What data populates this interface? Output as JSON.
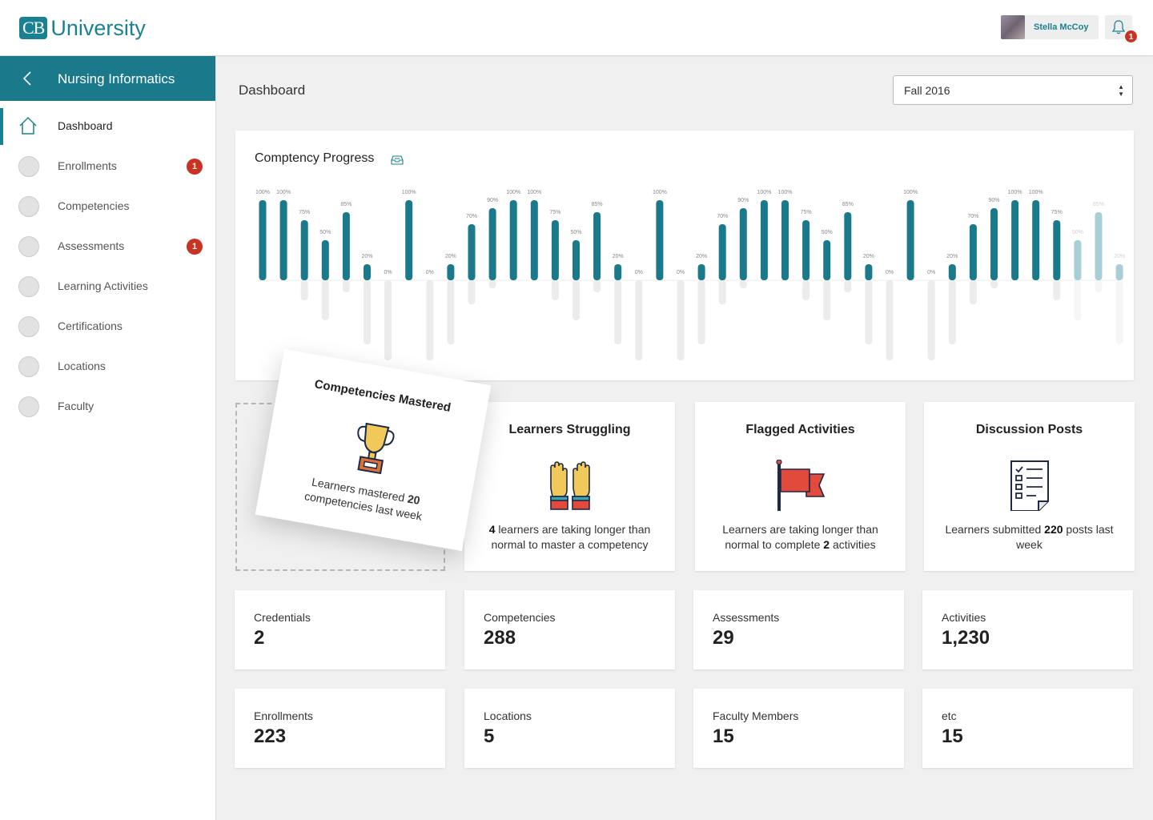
{
  "header": {
    "logo_mark": "CB",
    "logo_text": "University",
    "user_name": "Stella McCoy",
    "notification_count": "1"
  },
  "sidebar": {
    "title": "Nursing Informatics",
    "items": [
      {
        "label": "Dashboard",
        "active": true,
        "badge": ""
      },
      {
        "label": "Enrollments",
        "badge": "1"
      },
      {
        "label": "Competencies",
        "badge": ""
      },
      {
        "label": "Assessments",
        "badge": "1"
      },
      {
        "label": "Learning Activities",
        "badge": ""
      },
      {
        "label": "Certifications",
        "badge": ""
      },
      {
        "label": "Locations",
        "badge": ""
      },
      {
        "label": "Faculty",
        "badge": ""
      }
    ]
  },
  "main": {
    "title": "Dashboard",
    "term_select": "Fall 2016"
  },
  "chart_data": {
    "type": "bar",
    "title": "Comptency Progress",
    "xlabel": "",
    "ylabel": "",
    "ylim": [
      0,
      100
    ],
    "value_suffix": "%",
    "colors": {
      "bar": "#1a7a8c",
      "faded_bar": "#a9cfd6",
      "track": "#ececec"
    },
    "values": [
      100,
      100,
      75,
      50,
      85,
      20,
      0,
      100,
      0,
      20,
      70,
      90,
      100,
      100,
      75,
      50,
      85,
      20,
      0,
      100,
      0,
      20,
      70,
      90,
      100,
      100,
      75,
      50,
      85,
      20,
      0,
      100,
      0,
      20,
      70,
      90,
      100,
      100,
      75,
      50,
      85,
      20
    ],
    "faded_from_index": 39
  },
  "features": {
    "mastered": {
      "title": "Competencies Mastered",
      "desc_pre": "Learners mastered ",
      "desc_num": "20",
      "desc_post": " competencies last week"
    },
    "struggling": {
      "title": "Learners Struggling",
      "desc_num": "4",
      "desc_post": " learners are taking longer than normal to master a competency"
    },
    "flagged": {
      "title": "Flagged Activities",
      "desc_pre": "Learners are taking longer than normal to complete ",
      "desc_num": "2",
      "desc_post": " activities"
    },
    "posts": {
      "title": "Discussion Posts",
      "desc_pre": "Learners submitted ",
      "desc_num": "220",
      "desc_post": " posts last week"
    }
  },
  "stats": [
    {
      "label": "Credentials",
      "value": "2"
    },
    {
      "label": "Competencies",
      "value": "288"
    },
    {
      "label": "Assessments",
      "value": "29"
    },
    {
      "label": "Activities",
      "value": "1,230"
    },
    {
      "label": "Enrollments",
      "value": "223"
    },
    {
      "label": "Locations",
      "value": "5"
    },
    {
      "label": "Faculty Members",
      "value": "15"
    },
    {
      "label": "etc",
      "value": "15"
    }
  ]
}
